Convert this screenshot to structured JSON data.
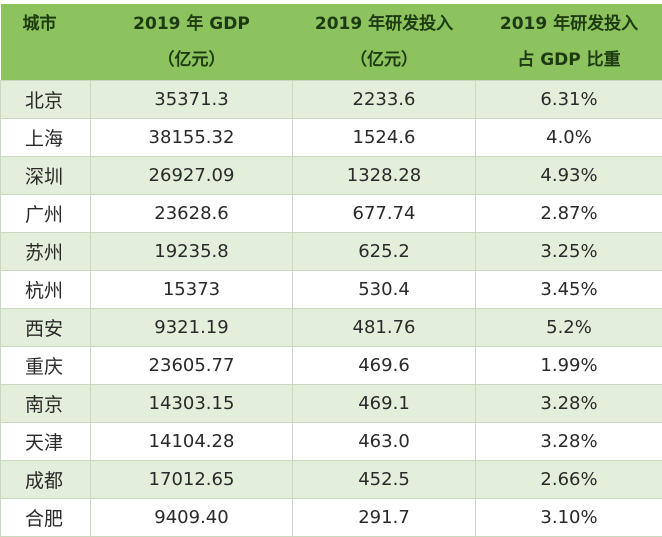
{
  "table": {
    "headers": [
      {
        "line1": "城市",
        "line2": ""
      },
      {
        "line1": "2019 年 GDP",
        "line2": "（亿元）"
      },
      {
        "line1": "2019 年研发投入",
        "line2": "（亿元）"
      },
      {
        "line1": "2019 年研发投入",
        "line2": "占 GDP 比重"
      }
    ],
    "rows": [
      [
        "北京",
        "35371.3",
        "2233.6",
        "6.31%"
      ],
      [
        "上海",
        "38155.32",
        "1524.6",
        "4.0%"
      ],
      [
        "深圳",
        "26927.09",
        "1328.28",
        "4.93%"
      ],
      [
        "广州",
        "23628.6",
        "677.74",
        "2.87%"
      ],
      [
        "苏州",
        "19235.8",
        "625.2",
        "3.25%"
      ],
      [
        "杭州",
        "15373",
        "530.4",
        "3.45%"
      ],
      [
        "西安",
        "9321.19",
        "481.76",
        "5.2%"
      ],
      [
        "重庆",
        "23605.77",
        "469.6",
        "1.99%"
      ],
      [
        "南京",
        "14303.15",
        "469.1",
        "3.28%"
      ],
      [
        "天津",
        "14104.28",
        "463.0",
        "3.28%"
      ],
      [
        "成都",
        "17012.65",
        "452.5",
        "2.66%"
      ],
      [
        "合肥",
        "9409.40",
        "291.7",
        "3.10%"
      ]
    ]
  },
  "colors": {
    "header_bg": "#8dc35f",
    "header_text": "#1d3a12",
    "alt_row_bg": "#e4efdb"
  }
}
